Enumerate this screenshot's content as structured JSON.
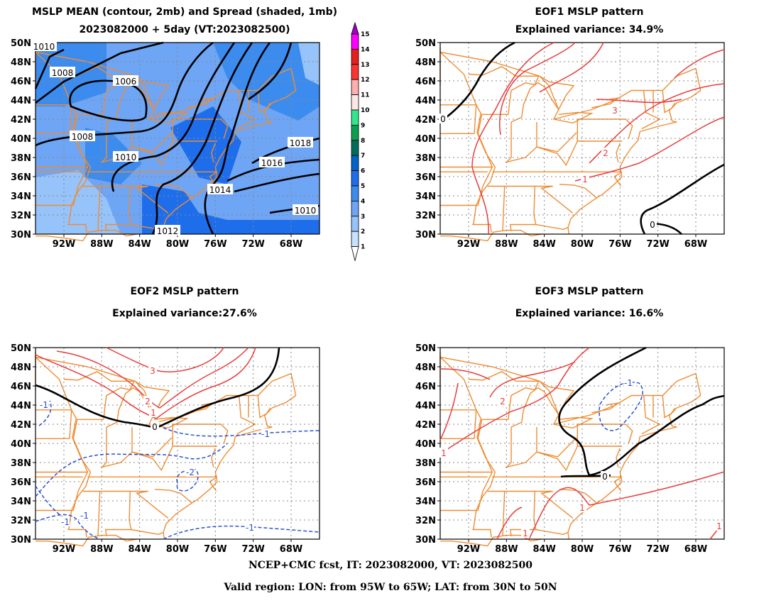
{
  "panels": {
    "mean": {
      "title_line1": "MSLP MEAN (contour, 2mb) and Spread (shaded, 1mb)",
      "title_line2": "2023082000 + 5day (VT:2023082500)",
      "contour_labels": [
        "1010",
        "1008",
        "1006",
        "1008",
        "1010",
        "1012",
        "1014",
        "1016",
        "1018",
        "1010"
      ]
    },
    "eof1": {
      "title_line1": "EOF1 MSLP pattern",
      "title_line2": "Explained variance: 34.9%",
      "contour_labels": [
        "0",
        "3",
        "2",
        "1",
        "0"
      ]
    },
    "eof2": {
      "title_line1": "EOF2 MSLP pattern",
      "title_line2": "Explained variance:27.6%",
      "contour_labels": [
        "3",
        "2",
        "1",
        "0",
        "-1",
        "-1",
        "-2",
        "-1",
        "-1",
        "-1"
      ]
    },
    "eof3": {
      "title_line1": "EOF3 MSLP pattern",
      "title_line2": "Explained variance: 16.6%",
      "contour_labels": [
        "-1",
        "2",
        "1",
        "0",
        "1",
        "1",
        "1"
      ]
    }
  },
  "axes": {
    "lat_labels": [
      "50N",
      "48N",
      "46N",
      "44N",
      "42N",
      "40N",
      "38N",
      "36N",
      "34N",
      "32N",
      "30N"
    ],
    "lon_labels": [
      "92W",
      "88W",
      "84W",
      "80W",
      "76W",
      "72W",
      "68W"
    ]
  },
  "colorbar": {
    "labels": [
      "15",
      "14",
      "13",
      "12",
      "11",
      "10",
      "9",
      "8",
      "7",
      "6",
      "5",
      "4",
      "3",
      "2",
      "1"
    ],
    "colors": [
      "#a000c8",
      "#ff00ff",
      "#e61e1e",
      "#ff3232",
      "#ffafaf",
      "#ffe6e6",
      "#32e68c",
      "#0aa050",
      "#006e5a",
      "#0064c8",
      "#1e6eeb",
      "#3c8cf0",
      "#6ea5f5",
      "#96c3fa",
      "#c8e1ff"
    ]
  },
  "footer": {
    "line1": "NCEP+CMC fcst, IT: 2023082000, VT: 2023082500",
    "line2": "Valid region: LON: from 95W to 65W; LAT: from 30N to 50N"
  },
  "colors": {
    "map_lines": "#f08c32",
    "mean_contour": "#000000",
    "positive_contour": "#e83c3c",
    "negative_contour": "#2850d8",
    "zero_contour": "#000000"
  }
}
